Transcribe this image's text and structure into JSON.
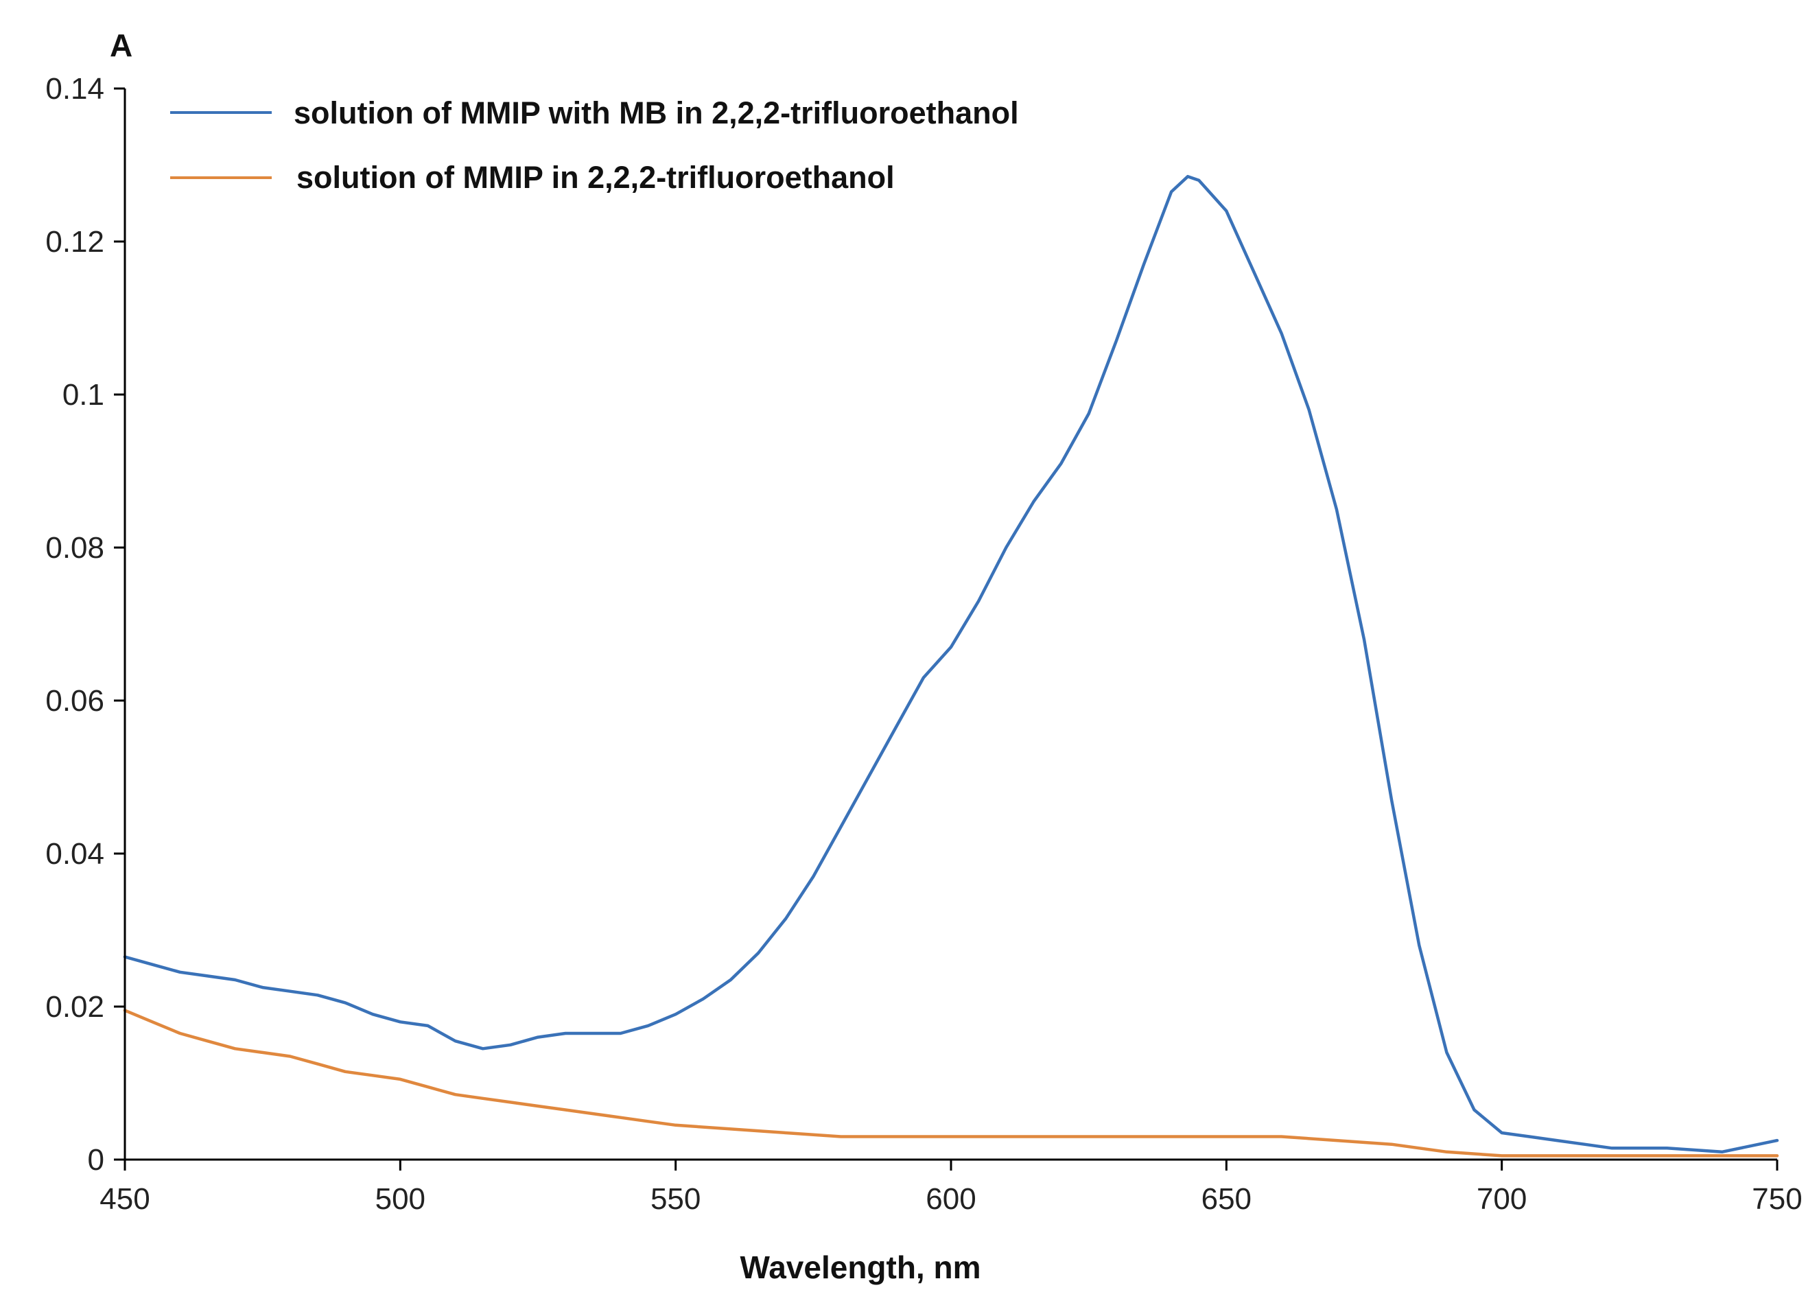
{
  "chart_data": {
    "type": "line",
    "title": "",
    "xlabel": "Wavelength, nm",
    "ylabel": "A",
    "xlim": [
      450,
      750
    ],
    "ylim": [
      0,
      0.14
    ],
    "x_ticks": [
      "450",
      "500",
      "550",
      "600",
      "650",
      "700",
      "750"
    ],
    "y_ticks": [
      "0",
      "0.02",
      "0.04",
      "0.06",
      "0.08",
      "0.1",
      "0.12",
      "0.14"
    ],
    "grid": false,
    "legend_position": "top-left",
    "series": [
      {
        "name": "solution of MMIP with MB in 2,2,2-trifluoroethanol",
        "color": "#3A72B8",
        "points": [
          [
            450,
            0.0265
          ],
          [
            455,
            0.0255
          ],
          [
            460,
            0.0245
          ],
          [
            465,
            0.024
          ],
          [
            470,
            0.0235
          ],
          [
            475,
            0.0225
          ],
          [
            480,
            0.022
          ],
          [
            485,
            0.0215
          ],
          [
            490,
            0.0205
          ],
          [
            495,
            0.019
          ],
          [
            500,
            0.018
          ],
          [
            505,
            0.0175
          ],
          [
            510,
            0.0155
          ],
          [
            515,
            0.0145
          ],
          [
            520,
            0.015
          ],
          [
            525,
            0.016
          ],
          [
            530,
            0.0165
          ],
          [
            535,
            0.0165
          ],
          [
            540,
            0.0165
          ],
          [
            545,
            0.0175
          ],
          [
            550,
            0.019
          ],
          [
            555,
            0.021
          ],
          [
            560,
            0.0235
          ],
          [
            565,
            0.027
          ],
          [
            570,
            0.0315
          ],
          [
            575,
            0.037
          ],
          [
            580,
            0.0435
          ],
          [
            585,
            0.05
          ],
          [
            590,
            0.0565
          ],
          [
            595,
            0.063
          ],
          [
            600,
            0.067
          ],
          [
            605,
            0.073
          ],
          [
            610,
            0.08
          ],
          [
            615,
            0.086
          ],
          [
            620,
            0.091
          ],
          [
            625,
            0.0975
          ],
          [
            630,
            0.107
          ],
          [
            635,
            0.117
          ],
          [
            640,
            0.1265
          ],
          [
            643,
            0.1285
          ],
          [
            645,
            0.128
          ],
          [
            650,
            0.124
          ],
          [
            655,
            0.116
          ],
          [
            660,
            0.108
          ],
          [
            665,
            0.098
          ],
          [
            670,
            0.085
          ],
          [
            675,
            0.068
          ],
          [
            680,
            0.047
          ],
          [
            685,
            0.028
          ],
          [
            690,
            0.014
          ],
          [
            695,
            0.0065
          ],
          [
            700,
            0.0035
          ],
          [
            705,
            0.003
          ],
          [
            710,
            0.0025
          ],
          [
            715,
            0.002
          ],
          [
            720,
            0.0015
          ],
          [
            730,
            0.0015
          ],
          [
            740,
            0.001
          ],
          [
            750,
            0.0025
          ]
        ]
      },
      {
        "name": "solution of MMIP in 2,2,2-trifluoroethanol",
        "color": "#E0883E",
        "points": [
          [
            450,
            0.0195
          ],
          [
            455,
            0.018
          ],
          [
            460,
            0.0165
          ],
          [
            465,
            0.0155
          ],
          [
            470,
            0.0145
          ],
          [
            475,
            0.014
          ],
          [
            480,
            0.0135
          ],
          [
            485,
            0.0125
          ],
          [
            490,
            0.0115
          ],
          [
            495,
            0.011
          ],
          [
            500,
            0.0105
          ],
          [
            505,
            0.0095
          ],
          [
            510,
            0.0085
          ],
          [
            515,
            0.008
          ],
          [
            520,
            0.0075
          ],
          [
            525,
            0.007
          ],
          [
            530,
            0.0065
          ],
          [
            535,
            0.006
          ],
          [
            540,
            0.0055
          ],
          [
            545,
            0.005
          ],
          [
            550,
            0.0045
          ],
          [
            560,
            0.004
          ],
          [
            570,
            0.0035
          ],
          [
            580,
            0.003
          ],
          [
            590,
            0.003
          ],
          [
            600,
            0.003
          ],
          [
            610,
            0.003
          ],
          [
            620,
            0.003
          ],
          [
            630,
            0.003
          ],
          [
            640,
            0.003
          ],
          [
            650,
            0.003
          ],
          [
            660,
            0.003
          ],
          [
            670,
            0.0025
          ],
          [
            680,
            0.002
          ],
          [
            690,
            0.001
          ],
          [
            700,
            0.0005
          ],
          [
            710,
            0.0005
          ],
          [
            720,
            0.0005
          ],
          [
            730,
            0.0005
          ],
          [
            740,
            0.0005
          ],
          [
            750,
            0.0005
          ]
        ]
      }
    ]
  }
}
